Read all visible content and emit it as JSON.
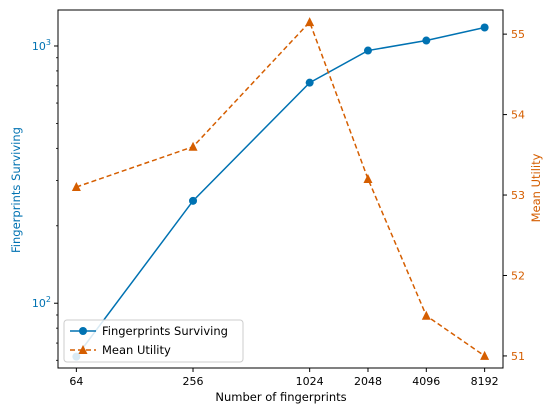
{
  "chart_data": {
    "type": "line",
    "title": "",
    "xlabel": "Number of fingerprints",
    "x": [
      64,
      256,
      1024,
      2048,
      4096,
      8192
    ],
    "xscale": "log2",
    "y_left": {
      "label": "Fingerprints Surviving",
      "scale": "log",
      "lim": [
        56,
        1380
      ],
      "ticks": [
        "10^2",
        "10^3"
      ],
      "color": "#0072B2"
    },
    "y_right": {
      "label": "Mean Utility",
      "scale": "linear",
      "lim": [
        50.85,
        55.3
      ],
      "ticks": [
        51,
        52,
        53,
        54,
        55
      ],
      "color": "#D55E00"
    },
    "series": [
      {
        "name": "Fingerprints Surviving",
        "axis": "left",
        "color": "#0072B2",
        "style": "solid",
        "marker": "circle",
        "values": [
          62,
          250,
          720,
          960,
          1050,
          1180
        ]
      },
      {
        "name": "Mean Utility",
        "axis": "right",
        "color": "#D55E00",
        "style": "dashed",
        "marker": "triangle",
        "values": [
          53.1,
          53.6,
          55.15,
          53.2,
          51.5,
          51.0
        ]
      }
    ],
    "legend": {
      "placement": "lower-left"
    },
    "grid": false
  }
}
